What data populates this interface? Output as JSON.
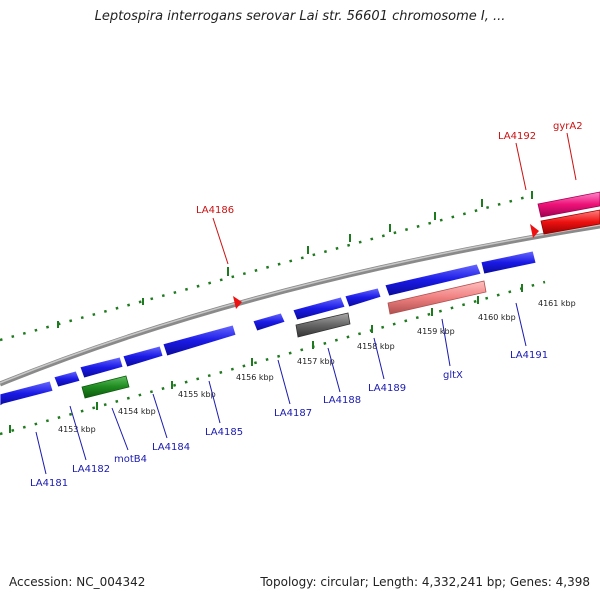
{
  "title": "Leptospira interrogans serovar Lai str. 56601 chromosome I, ...",
  "footer": {
    "accession": "Accession: NC_004342",
    "summary": "Topology: circular; Length: 4,332,241 bp; Genes: 4,398"
  },
  "colors": {
    "cds": "#1a1ae6",
    "named_gene": "#1e8a1e",
    "rna": "#666666",
    "pseudo": "#f08080",
    "forward_strand": "#ee1177",
    "forward_red": "#ee1111",
    "label_blue": "#1a1ab0",
    "label_red": "#cc1111",
    "tick": "#1e7a1e",
    "backbone": "#909090"
  },
  "kbp_ticks": [
    "4153 kbp",
    "4154 kbp",
    "4155 kbp",
    "4156 kbp",
    "4157 kbp",
    "4158 kbp",
    "4159 kbp",
    "4160 kbp",
    "4161 kbp"
  ],
  "reverse_labels": [
    "LA4181",
    "LA4182",
    "motB4",
    "LA4184",
    "LA4185",
    "LA4187",
    "LA4188",
    "LA4189",
    "gltX",
    "LA4191"
  ],
  "forward_labels": [
    "LA4186",
    "LA4192",
    "gyrA2"
  ]
}
